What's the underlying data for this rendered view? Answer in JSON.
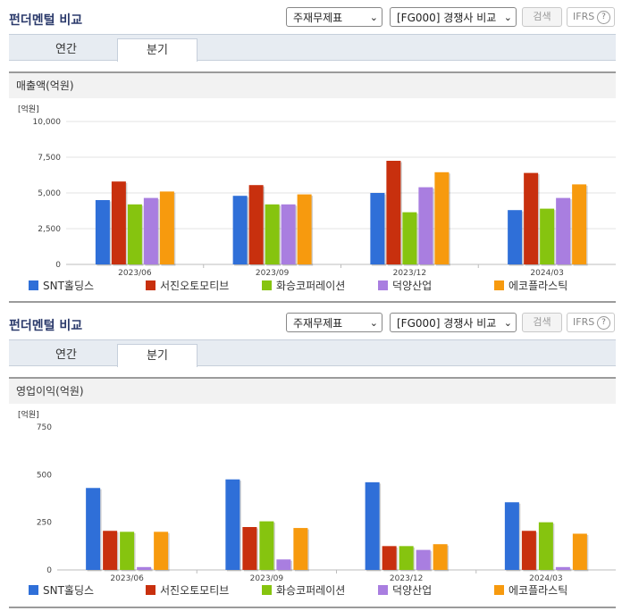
{
  "sections": [
    {
      "title": "펀더멘털 비교",
      "select1": "주재무제표",
      "select2": "[FG000] 경쟁사 비교",
      "search_label": "검색",
      "ifrs_label": "IFRS",
      "help_label": "?",
      "tabs": [
        {
          "label": "연간"
        },
        {
          "label": "분기"
        }
      ],
      "active_tab": 1,
      "subheader": "매출액(억원)",
      "chart_data": {
        "type": "bar",
        "unit": "[억원]",
        "ylim": [
          0,
          10000
        ],
        "yticks": [
          0,
          2500,
          5000,
          7500,
          10000
        ],
        "ytick_labels": [
          "0",
          "2,500",
          "5,000",
          "7,500",
          "10,000"
        ],
        "categories": [
          "2023/06",
          "2023/09",
          "2023/12",
          "2024/03"
        ],
        "grid": true,
        "legend_position": "bottom",
        "series": [
          {
            "name": "SNT홀딩스",
            "color": "#2f6fd8",
            "values": [
              4500,
              4800,
              5000,
              3800
            ]
          },
          {
            "name": "서진오토모티브",
            "color": "#c8300e",
            "values": [
              5800,
              5550,
              7250,
              6400
            ]
          },
          {
            "name": "화승코퍼레이션",
            "color": "#86c40f",
            "values": [
              4200,
              4200,
              3650,
              3900
            ]
          },
          {
            "name": "덕양산업",
            "color": "#a97ee0",
            "values": [
              4650,
              4200,
              5400,
              4650
            ]
          },
          {
            "name": "에코플라스틱",
            "color": "#f79a0e",
            "values": [
              5100,
              4900,
              6450,
              5600
            ]
          }
        ]
      }
    },
    {
      "title": "펀더멘털 비교",
      "select1": "주재무제표",
      "select2": "[FG000] 경쟁사 비교",
      "search_label": "검색",
      "ifrs_label": "IFRS",
      "help_label": "?",
      "tabs": [
        {
          "label": "연간"
        },
        {
          "label": "분기"
        }
      ],
      "active_tab": 1,
      "subheader": "영업이익(억원)",
      "chart_data": {
        "type": "bar",
        "unit": "[억원]",
        "ylim": [
          0,
          750
        ],
        "yticks": [
          0,
          250,
          500,
          750
        ],
        "ytick_labels": [
          "0",
          "250",
          "500",
          "750"
        ],
        "categories": [
          "2023/06",
          "2023/09",
          "2023/12",
          "2024/03"
        ],
        "grid": false,
        "legend_position": "bottom",
        "series": [
          {
            "name": "SNT홀딩스",
            "color": "#2f6fd8",
            "values": [
              430,
              475,
              460,
              355
            ]
          },
          {
            "name": "서진오토모티브",
            "color": "#c8300e",
            "values": [
              205,
              225,
              125,
              205
            ]
          },
          {
            "name": "화승코퍼레이션",
            "color": "#86c40f",
            "values": [
              200,
              255,
              125,
              250
            ]
          },
          {
            "name": "덕양산업",
            "color": "#a97ee0",
            "values": [
              15,
              55,
              105,
              15
            ]
          },
          {
            "name": "에코플라스틱",
            "color": "#f79a0e",
            "values": [
              200,
              220,
              135,
              190
            ]
          }
        ]
      }
    }
  ]
}
